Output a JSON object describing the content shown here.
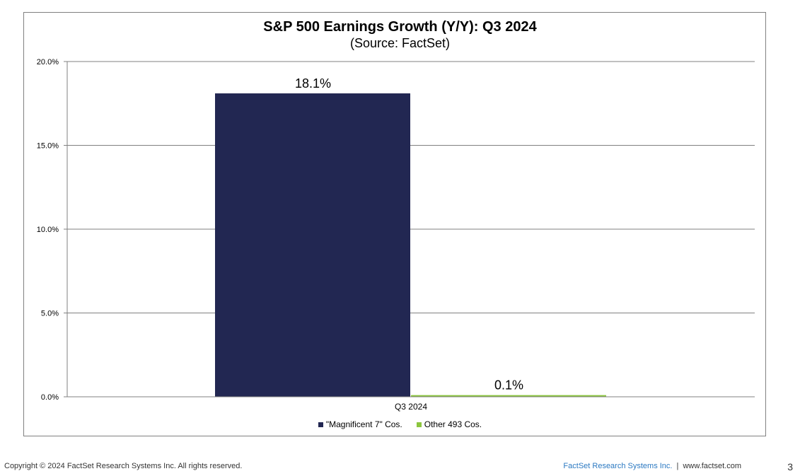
{
  "chart_data": {
    "type": "bar",
    "title": "S&P 500 Earnings Growth (Y/Y): Q3 2024",
    "subtitle": "(Source: FactSet)",
    "categories": [
      "Q3 2024"
    ],
    "series": [
      {
        "name": "\"Magnificent 7\" Cos.",
        "values": [
          18.1
        ],
        "color": "#222752",
        "label": "18.1%"
      },
      {
        "name": "Other 493 Cos.",
        "values": [
          0.1
        ],
        "color": "#8cc63e",
        "label": "0.1%"
      }
    ],
    "ylim": [
      0,
      20
    ],
    "yticks": [
      0,
      5,
      10,
      15,
      20
    ],
    "ytick_labels": [
      "0.0%",
      "5.0%",
      "10.0%",
      "15.0%",
      "20.0%"
    ],
    "xlabel": "",
    "ylabel": "",
    "grid": true,
    "legend": "bottom"
  },
  "footer": {
    "copyright": "Copyright © 2024 FactSet Research Systems Inc. All rights reserved.",
    "company_link": "FactSet Research Systems Inc.",
    "separator": "|",
    "website": "www.factset.com",
    "page_number": "3"
  }
}
